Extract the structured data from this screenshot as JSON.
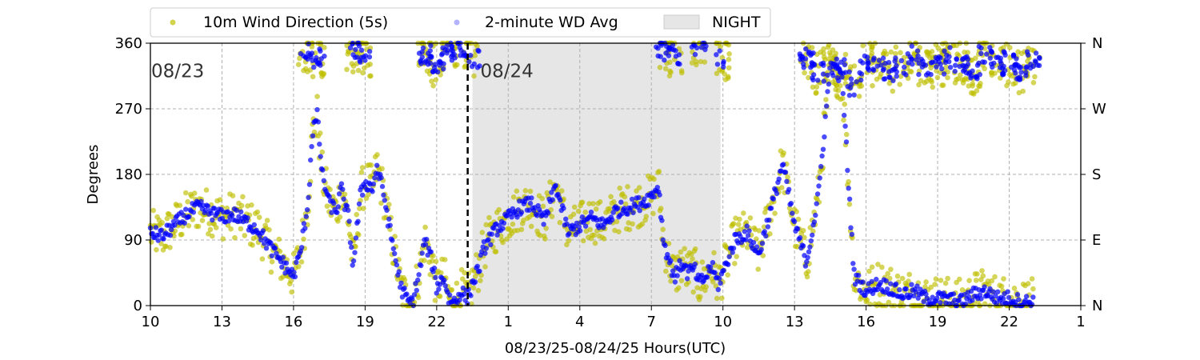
{
  "chart_data": {
    "type": "scatter",
    "title": "",
    "xlabel": "08/23/25-08/24/25  Hours(UTC)",
    "ylabel": "Degrees",
    "x_unit": "hours since 08/23 00:00 UTC",
    "xlim": [
      10,
      49
    ],
    "ylim": [
      0,
      360
    ],
    "x_ticks": [
      10,
      13,
      16,
      19,
      22,
      25,
      28,
      31,
      34,
      37,
      40,
      43,
      46,
      49
    ],
    "x_tick_labels": [
      "10",
      "13",
      "16",
      "19",
      "22",
      "1",
      "4",
      "7",
      "10",
      "13",
      "16",
      "19",
      "22",
      "1"
    ],
    "y_ticks": [
      0,
      90,
      180,
      270,
      360
    ],
    "y_tick_labels": [
      "0",
      "90",
      "180",
      "270",
      "360"
    ],
    "right_axis_labels": [
      "N",
      "E",
      "S",
      "W",
      "N"
    ],
    "grid": true,
    "legend_position": "top",
    "day_divider_x": 23.3,
    "day_labels": [
      {
        "text": "08/23",
        "x": 10.0,
        "y": 322
      },
      {
        "text": "08/24",
        "x": 23.8,
        "y": 322
      }
    ],
    "night_band": {
      "label": "NIGHT",
      "start": 23.5,
      "end": 33.9,
      "color": "#e6e6e6"
    },
    "series": [
      {
        "name": "10m Wind Direction (5s)",
        "color": "#bfbf00",
        "spread": 32,
        "x": [
          10.0,
          10.5,
          11.0,
          11.5,
          12.0,
          12.5,
          13.0,
          13.5,
          14.0,
          14.5,
          15.0,
          15.5,
          16.0,
          16.3,
          16.6,
          16.8,
          17.0,
          17.2,
          17.5,
          17.8,
          18.0,
          18.3,
          18.5,
          18.8,
          19.0,
          19.3,
          19.5,
          19.8,
          20.0,
          20.3,
          20.5,
          20.8,
          21.0,
          21.3,
          21.5,
          21.8,
          22.0,
          22.3,
          22.5,
          22.8,
          23.0,
          23.3,
          23.5,
          23.8,
          24.0,
          24.5,
          25.0,
          25.5,
          26.0,
          26.5,
          27.0,
          27.5,
          28.0,
          28.5,
          29.0,
          29.5,
          30.0,
          30.5,
          31.0,
          31.3,
          31.5,
          31.8,
          32.0,
          32.3,
          32.5,
          32.8,
          33.0,
          33.3,
          33.5,
          33.8,
          34.0,
          34.5,
          35.0,
          35.5,
          36.0,
          36.5,
          37.0,
          37.5,
          38.0,
          38.5,
          39.0,
          39.5,
          40.0,
          40.5,
          41.0,
          41.5,
          42.0,
          42.5,
          43.0,
          43.5,
          44.0,
          44.5,
          45.0,
          45.5,
          46.0,
          46.5,
          47.0
        ],
        "y": [
          100,
          95,
          110,
          125,
          135,
          128,
          122,
          125,
          115,
          105,
          80,
          60,
          40,
          75,
          140,
          240,
          260,
          180,
          140,
          130,
          160,
          120,
          55,
          150,
          170,
          160,
          190,
          150,
          110,
          60,
          25,
          5,
          5,
          50,
          90,
          60,
          25,
          40,
          10,
          5,
          20,
          10,
          30,
          55,
          80,
          105,
          120,
          135,
          140,
          115,
          165,
          100,
          110,
          120,
          110,
          130,
          135,
          140,
          150,
          165,
          90,
          55,
          40,
          60,
          45,
          50,
          30,
          40,
          55,
          30,
          45,
          90,
          100,
          70,
          130,
          195,
          110,
          60,
          150,
          330,
          310,
          40,
          20,
          30,
          25,
          15,
          20,
          10,
          10,
          8,
          5,
          15,
          20,
          10,
          10,
          5,
          5
        ]
      },
      {
        "name": "2-minute WD Avg",
        "color": "#0000ff",
        "spread": 10,
        "x": [
          10.0,
          10.5,
          11.0,
          11.5,
          12.0,
          12.5,
          13.0,
          13.5,
          14.0,
          14.5,
          15.0,
          15.5,
          16.0,
          16.3,
          16.6,
          16.8,
          17.0,
          17.2,
          17.5,
          17.8,
          18.0,
          18.3,
          18.5,
          18.8,
          19.0,
          19.3,
          19.5,
          19.8,
          20.0,
          20.3,
          20.5,
          20.8,
          21.0,
          21.3,
          21.5,
          21.8,
          22.0,
          22.3,
          22.5,
          22.8,
          23.0,
          23.3,
          23.5,
          23.8,
          24.0,
          24.5,
          25.0,
          25.5,
          26.0,
          26.5,
          27.0,
          27.5,
          28.0,
          28.5,
          29.0,
          29.5,
          30.0,
          30.5,
          31.0,
          31.3,
          31.5,
          31.8,
          32.0,
          32.3,
          32.5,
          32.8,
          33.0,
          33.3,
          33.5,
          33.8,
          34.0,
          34.5,
          35.0,
          35.5,
          36.0,
          36.5,
          37.0,
          37.5,
          38.0,
          38.5,
          39.0,
          39.5,
          40.0,
          40.5,
          41.0,
          41.5,
          42.0,
          42.5,
          43.0,
          43.5,
          44.0,
          44.5,
          45.0,
          45.5,
          46.0,
          46.5,
          47.0
        ],
        "y": [
          100,
          95,
          110,
          125,
          135,
          128,
          122,
          125,
          115,
          105,
          80,
          60,
          40,
          75,
          140,
          240,
          260,
          180,
          140,
          130,
          160,
          120,
          55,
          150,
          170,
          160,
          190,
          150,
          110,
          60,
          25,
          5,
          5,
          50,
          90,
          60,
          25,
          40,
          10,
          5,
          20,
          10,
          30,
          55,
          80,
          105,
          120,
          135,
          140,
          115,
          165,
          100,
          110,
          120,
          110,
          130,
          135,
          140,
          150,
          165,
          90,
          55,
          40,
          60,
          45,
          50,
          30,
          40,
          55,
          30,
          45,
          90,
          100,
          70,
          130,
          195,
          110,
          60,
          150,
          330,
          310,
          40,
          20,
          30,
          25,
          15,
          20,
          10,
          10,
          8,
          5,
          15,
          20,
          10,
          10,
          5,
          5
        ]
      }
    ],
    "north_cluster": {
      "x": [
        16.5,
        17.0,
        18.5,
        19.0,
        21.5,
        22.0,
        22.5,
        23.0,
        23.5,
        31.5,
        32.0,
        33.0,
        34.0,
        37.5,
        38.0,
        38.5,
        39.0,
        39.5,
        40.0,
        40.5,
        41.0,
        41.5,
        42.0,
        42.5,
        43.0,
        43.5,
        44.0,
        44.5,
        45.0,
        45.5,
        46.0,
        46.5,
        47.0
      ],
      "y": [
        350,
        340,
        350,
        340,
        345,
        330,
        350,
        355,
        340,
        350,
        345,
        355,
        340,
        340,
        320,
        330,
        325,
        300,
        330,
        335,
        320,
        330,
        345,
        325,
        330,
        340,
        335,
        320,
        345,
        335,
        330,
        320,
        335
      ]
    }
  }
}
